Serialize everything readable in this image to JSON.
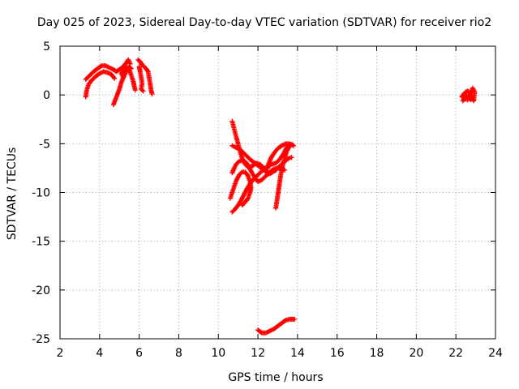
{
  "chart_data": {
    "type": "scatter",
    "title": "Day 025 of 2023, Sidereal Day-to-day VTEC variation (SDTVAR) for receiver rio2",
    "xlabel": "GPS time / hours",
    "ylabel": "SDTVAR / TECUs",
    "xlim": [
      2,
      24
    ],
    "ylim": [
      -25,
      5
    ],
    "xticks": [
      2,
      4,
      6,
      8,
      10,
      12,
      14,
      16,
      18,
      20,
      22,
      24
    ],
    "yticks": [
      5,
      0,
      -5,
      -10,
      -15,
      -20,
      -25
    ],
    "grid": true,
    "legend": "none",
    "marker": "+",
    "series": [
      {
        "color": "#ff0000",
        "segments": [
          [
            [
              3.3,
              -0.2
            ],
            [
              3.35,
              0.5
            ],
            [
              3.45,
              1.1
            ],
            [
              3.6,
              1.5
            ],
            [
              3.8,
              1.9
            ],
            [
              4.0,
              2.2
            ],
            [
              4.2,
              2.4
            ],
            [
              4.4,
              2.3
            ],
            [
              4.6,
              2.1
            ],
            [
              4.75,
              1.7
            ]
          ],
          [
            [
              3.3,
              1.6
            ],
            [
              3.5,
              2.0
            ],
            [
              3.7,
              2.4
            ],
            [
              3.9,
              2.7
            ],
            [
              4.1,
              3.0
            ],
            [
              4.3,
              3.0
            ],
            [
              4.5,
              2.8
            ],
            [
              4.7,
              2.6
            ],
            [
              4.85,
              2.4
            ],
            [
              5.0,
              2.6
            ],
            [
              5.2,
              2.9
            ],
            [
              5.35,
              3.3
            ],
            [
              5.45,
              3.6
            ],
            [
              5.55,
              3.2
            ]
          ],
          [
            [
              4.7,
              -1.0
            ],
            [
              4.85,
              -0.2
            ],
            [
              5.0,
              0.6
            ],
            [
              5.1,
              1.3
            ],
            [
              5.2,
              1.8
            ],
            [
              5.3,
              2.2
            ],
            [
              5.4,
              2.6
            ],
            [
              5.5,
              2.9
            ],
            [
              5.6,
              2.7
            ]
          ],
          [
            [
              5.2,
              1.8
            ],
            [
              5.1,
              2.2
            ],
            [
              5.25,
              2.6
            ],
            [
              5.4,
              2.8
            ],
            [
              5.5,
              2.6
            ],
            [
              5.6,
              2.0
            ],
            [
              5.7,
              1.4
            ],
            [
              5.75,
              0.9
            ],
            [
              5.8,
              0.5
            ]
          ],
          [
            [
              5.95,
              3.6
            ],
            [
              6.05,
              3.4
            ],
            [
              6.15,
              3.1
            ],
            [
              6.25,
              2.9
            ],
            [
              6.35,
              2.7
            ],
            [
              6.45,
              2.4
            ],
            [
              6.5,
              1.8
            ],
            [
              6.55,
              1.2
            ],
            [
              6.6,
              0.5
            ],
            [
              6.65,
              0.1
            ]
          ],
          [
            [
              6.0,
              2.9
            ],
            [
              6.05,
              2.4
            ],
            [
              6.1,
              1.8
            ],
            [
              6.15,
              1.2
            ],
            [
              6.1,
              0.6
            ],
            [
              6.2,
              0.4
            ]
          ],
          [
            [
              10.7,
              -2.7
            ],
            [
              10.8,
              -3.5
            ],
            [
              10.9,
              -4.3
            ],
            [
              11.0,
              -5.0
            ],
            [
              11.1,
              -5.8
            ],
            [
              11.2,
              -6.5
            ],
            [
              11.35,
              -7.1
            ],
            [
              11.5,
              -7.4
            ],
            [
              11.7,
              -7.3
            ],
            [
              11.9,
              -7.0
            ],
            [
              12.1,
              -7.1
            ],
            [
              12.25,
              -7.4
            ],
            [
              12.4,
              -7.8
            ],
            [
              12.55,
              -8.1
            ],
            [
              12.7,
              -8.0
            ]
          ],
          [
            [
              10.7,
              -5.2
            ],
            [
              10.9,
              -5.4
            ],
            [
              11.1,
              -5.6
            ],
            [
              11.35,
              -6.1
            ],
            [
              11.6,
              -6.6
            ],
            [
              11.85,
              -7.0
            ],
            [
              12.1,
              -7.4
            ],
            [
              12.35,
              -7.8
            ],
            [
              12.6,
              -8.0
            ],
            [
              12.85,
              -7.8
            ],
            [
              13.1,
              -7.3
            ],
            [
              13.35,
              -6.8
            ],
            [
              13.55,
              -6.5
            ],
            [
              13.7,
              -6.4
            ]
          ],
          [
            [
              10.7,
              -8.0
            ],
            [
              10.8,
              -7.5
            ],
            [
              10.9,
              -7.1
            ],
            [
              11.05,
              -6.8
            ],
            [
              11.2,
              -6.7
            ],
            [
              11.4,
              -6.9
            ],
            [
              11.55,
              -7.4
            ],
            [
              11.7,
              -8.0
            ],
            [
              11.85,
              -8.5
            ],
            [
              12.0,
              -8.9
            ],
            [
              12.2,
              -8.7
            ],
            [
              12.4,
              -8.3
            ],
            [
              12.6,
              -7.9
            ],
            [
              12.8,
              -7.6
            ],
            [
              13.0,
              -7.5
            ],
            [
              13.2,
              -7.6
            ],
            [
              13.35,
              -7.7
            ]
          ],
          [
            [
              10.7,
              -12.0
            ],
            [
              10.85,
              -11.7
            ],
            [
              11.0,
              -11.3
            ],
            [
              11.15,
              -10.8
            ],
            [
              11.3,
              -10.2
            ],
            [
              11.45,
              -9.6
            ],
            [
              11.6,
              -9.1
            ],
            [
              11.75,
              -8.7
            ],
            [
              11.9,
              -8.4
            ],
            [
              12.1,
              -8.0
            ],
            [
              12.3,
              -7.6
            ],
            [
              12.5,
              -7.3
            ],
            [
              12.7,
              -7.1
            ],
            [
              12.9,
              -7.0
            ],
            [
              13.1,
              -6.6
            ],
            [
              13.3,
              -6.0
            ],
            [
              13.45,
              -5.4
            ],
            [
              13.55,
              -5.2
            ]
          ],
          [
            [
              10.6,
              -10.6
            ],
            [
              10.7,
              -10.0
            ],
            [
              10.8,
              -9.4
            ],
            [
              10.9,
              -8.8
            ],
            [
              11.05,
              -8.2
            ],
            [
              11.2,
              -7.9
            ],
            [
              11.35,
              -7.9
            ],
            [
              11.5,
              -8.3
            ],
            [
              11.6,
              -8.9
            ],
            [
              11.65,
              -9.5
            ],
            [
              11.6,
              -10.0
            ],
            [
              11.5,
              -10.6
            ],
            [
              11.35,
              -11.0
            ],
            [
              11.2,
              -11.3
            ]
          ],
          [
            [
              12.9,
              -11.6
            ],
            [
              12.95,
              -11.0
            ],
            [
              13.0,
              -10.3
            ],
            [
              13.05,
              -9.6
            ],
            [
              13.1,
              -8.9
            ],
            [
              13.15,
              -8.2
            ],
            [
              13.25,
              -7.3
            ],
            [
              13.35,
              -6.5
            ],
            [
              13.45,
              -5.8
            ],
            [
              13.55,
              -5.4
            ],
            [
              13.65,
              -5.1
            ],
            [
              13.75,
              -5.1
            ]
          ],
          [
            [
              12.5,
              -7.5
            ],
            [
              12.55,
              -7.0
            ],
            [
              12.65,
              -6.5
            ],
            [
              12.8,
              -6.0
            ],
            [
              13.0,
              -5.5
            ],
            [
              13.2,
              -5.2
            ],
            [
              13.4,
              -5.0
            ],
            [
              13.6,
              -5.0
            ],
            [
              13.8,
              -5.2
            ]
          ],
          [
            [
              12.0,
              -24.1
            ],
            [
              12.2,
              -24.4
            ],
            [
              12.4,
              -24.4
            ],
            [
              12.6,
              -24.2
            ],
            [
              12.8,
              -24.0
            ],
            [
              13.0,
              -23.7
            ],
            [
              13.2,
              -23.4
            ],
            [
              13.4,
              -23.1
            ],
            [
              13.6,
              -23.0
            ],
            [
              13.85,
              -23.0
            ]
          ],
          [
            [
              22.3,
              -0.2
            ],
            [
              22.4,
              0.1
            ],
            [
              22.5,
              0.3
            ],
            [
              22.6,
              0.4
            ],
            [
              22.7,
              0.2
            ],
            [
              22.8,
              -0.3
            ],
            [
              22.9,
              -0.6
            ],
            [
              22.95,
              0.3
            ],
            [
              22.85,
              0.7
            ],
            [
              22.7,
              0.0
            ],
            [
              22.6,
              -0.5
            ],
            [
              22.45,
              -0.4
            ],
            [
              22.35,
              -0.6
            ],
            [
              22.55,
              -0.1
            ],
            [
              22.75,
              -0.5
            ]
          ]
        ]
      }
    ]
  }
}
